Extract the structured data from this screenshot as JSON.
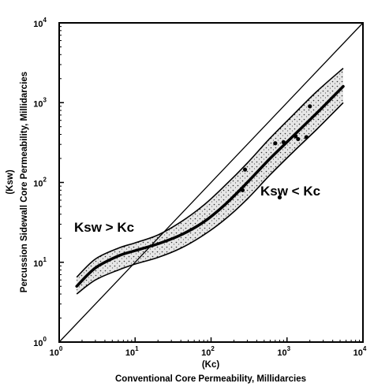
{
  "chart_data": {
    "type": "scatter",
    "scale": "log-log",
    "xlim": [
      1,
      10000
    ],
    "ylim": [
      1,
      10000
    ],
    "x_tick_labels": [
      {
        "base": "10",
        "exp": "0",
        "value": 1
      },
      {
        "base": "10",
        "exp": "1",
        "value": 10
      },
      {
        "base": "10",
        "exp": "2",
        "value": 100
      },
      {
        "base": "10",
        "exp": "3",
        "value": 1000
      },
      {
        "base": "10",
        "exp": "4",
        "value": 10000
      }
    ],
    "y_tick_labels": [
      {
        "base": "10",
        "exp": "0",
        "value": 1
      },
      {
        "base": "10",
        "exp": "1",
        "value": 10
      },
      {
        "base": "10",
        "exp": "2",
        "value": 100
      },
      {
        "base": "10",
        "exp": "3",
        "value": 1000
      },
      {
        "base": "10",
        "exp": "4",
        "value": 10000
      }
    ],
    "xlabel_symbol": "(Kc)",
    "xlabel": "Conventional Core Permeability, Millidarcies",
    "ylabel_symbol": "(Ksw)",
    "ylabel": "Percussion Sidewall Core Permeability, Millidarcies",
    "annotations": {
      "upper_region": "Ksw > Kc",
      "lower_region": "Ksw < Kc"
    },
    "reference_line": {
      "x": [
        1,
        10000
      ],
      "y": [
        1,
        10000
      ]
    },
    "trend_curve": {
      "x": [
        1.7,
        3,
        6,
        10,
        20,
        40,
        80,
        150,
        300,
        600,
        1200,
        2500,
        5500
      ],
      "y": [
        5,
        8.5,
        12,
        14,
        17,
        22,
        32,
        52,
        100,
        200,
        380,
        750,
        1600
      ]
    },
    "band_upper": [
      6.5,
      11,
      15,
      17.5,
      22,
      32,
      52,
      90,
      175,
      360,
      700,
      1400,
      2700
    ],
    "band_lower": [
      4,
      6,
      8,
      9.5,
      11.5,
      15,
      22,
      34,
      62,
      125,
      240,
      470,
      1000
    ],
    "points": {
      "x": [
        280,
        700,
        900,
        1400,
        1800,
        800,
        1300,
        2000,
        260
      ],
      "y": [
        145,
        310,
        320,
        350,
        370,
        65,
        380,
        900,
        80
      ]
    },
    "grid": false,
    "legend": "none"
  }
}
